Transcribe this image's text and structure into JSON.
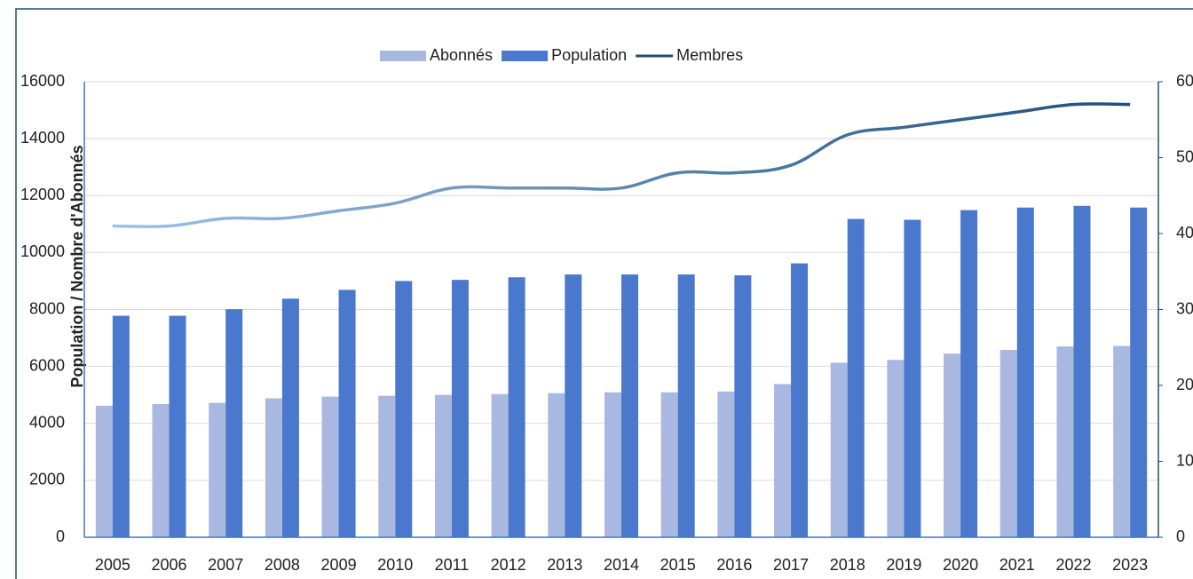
{
  "chart_data": {
    "type": "bar_line",
    "y_label": "Population / Nombre d'Abonnés",
    "categories": [
      "2005",
      "2006",
      "2007",
      "2008",
      "2009",
      "2010",
      "2011",
      "2012",
      "2013",
      "2014",
      "2015",
      "2016",
      "2017",
      "2018",
      "2019",
      "2020",
      "2021",
      "2022",
      "2023"
    ],
    "series": [
      {
        "name": "Abonnés",
        "type": "bar",
        "color": "#a9b8e0",
        "values": [
          4620,
          4680,
          4720,
          4880,
          4940,
          4970,
          5000,
          5030,
          5060,
          5090,
          5090,
          5120,
          5380,
          6130,
          6230,
          6450,
          6580,
          6700,
          6720
        ]
      },
      {
        "name": "Population",
        "type": "bar",
        "color": "#4a78cc",
        "values": [
          7780,
          7780,
          8010,
          8380,
          8690,
          9000,
          9040,
          9130,
          9230,
          9230,
          9230,
          9200,
          9620,
          11180,
          11150,
          11490,
          11580,
          11640,
          11580
        ]
      },
      {
        "name": "Membres",
        "type": "line",
        "axis": "y2",
        "color": "#1f4e79",
        "gradient": [
          "#9dc3e6",
          "#1f4e79"
        ],
        "values": [
          41,
          41,
          42,
          42,
          43,
          44,
          46,
          46,
          46,
          46,
          48,
          48,
          49,
          53,
          54,
          55,
          56,
          57,
          57
        ]
      }
    ],
    "ylim": [
      0,
      16000
    ],
    "yticks": [
      0,
      2000,
      4000,
      6000,
      8000,
      10000,
      12000,
      14000,
      16000
    ],
    "y2lim": [
      0,
      60
    ],
    "y2ticks": [
      0,
      10,
      20,
      30,
      40,
      50,
      60
    ],
    "grid": true,
    "legend": "top"
  }
}
